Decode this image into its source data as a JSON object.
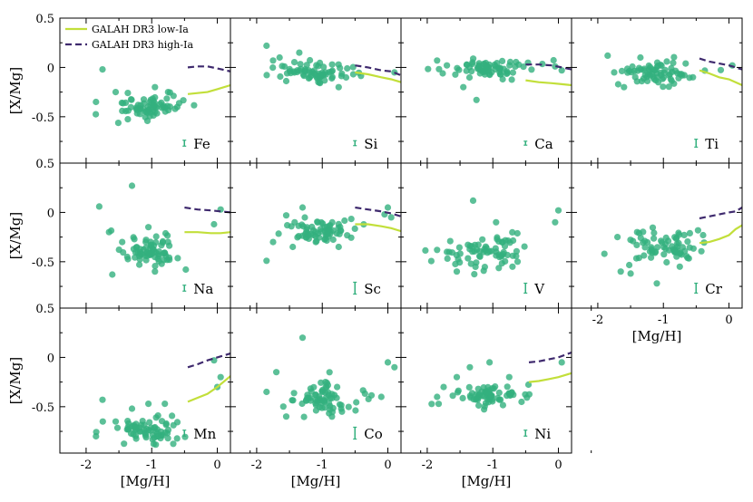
{
  "chart_data": {
    "type": "scatter",
    "layout": "3x4 grid of panels",
    "x_axis": {
      "label": "[Mg/H]",
      "range": [
        -2.4,
        0.2
      ],
      "ticks": [
        -2,
        -1,
        0
      ],
      "tick_labels": [
        "-2",
        "-1",
        "0"
      ]
    },
    "y_axis": {
      "label": "[X/Mg]",
      "range": [
        -0.97,
        0.5
      ],
      "ticks": [
        0.5,
        0,
        -0.5
      ],
      "tick_labels": [
        "0.5",
        "0",
        "-0.5"
      ]
    },
    "legend": {
      "position": "top-left of first panel",
      "entries": [
        {
          "name": "GALAH DR3 low-Ia",
          "style": "solid",
          "color": "#c2df3a"
        },
        {
          "name": "GALAH DR3 high-Ia",
          "style": "dashed",
          "color": "#3f2a6e"
        }
      ]
    },
    "colors": {
      "scatter": "#33b07e",
      "low_ia": "#c2df3a",
      "high_ia": "#3f2a6e"
    },
    "panels": [
      {
        "element": "Fe",
        "center": [
          -1.05,
          -0.4
        ],
        "spread": [
          0.25,
          0.06
        ],
        "err": 0.03,
        "outliers": [
          [
            -1.85,
            -0.35
          ],
          [
            -1.75,
            -0.02
          ],
          [
            -1.55,
            -0.25
          ],
          [
            -0.95,
            -0.2
          ],
          [
            -0.75,
            -0.25
          ]
        ],
        "low_ia": [
          [
            -0.45,
            -0.27
          ],
          [
            -0.3,
            -0.26
          ],
          [
            -0.15,
            -0.25
          ],
          [
            0.0,
            -0.22
          ],
          [
            0.2,
            -0.18
          ]
        ],
        "high_ia": [
          [
            -0.45,
            0.0
          ],
          [
            -0.3,
            0.01
          ],
          [
            -0.15,
            0.01
          ],
          [
            0.0,
            -0.01
          ],
          [
            0.2,
            -0.04
          ]
        ]
      },
      {
        "element": "Si",
        "center": [
          -1.1,
          -0.05
        ],
        "spread": [
          0.3,
          0.05
        ],
        "err": 0.025,
        "outliers": [
          [
            -1.85,
            0.22
          ],
          [
            -1.75,
            0.07
          ],
          [
            -1.65,
            0.1
          ],
          [
            -1.35,
            0.15
          ],
          [
            -0.75,
            -0.2
          ],
          [
            0.1,
            -0.05
          ]
        ],
        "low_ia": [
          [
            -0.5,
            -0.05
          ],
          [
            -0.3,
            -0.07
          ],
          [
            -0.1,
            -0.1
          ],
          [
            0.05,
            -0.12
          ],
          [
            0.2,
            -0.15
          ]
        ],
        "high_ia": [
          [
            -0.5,
            0.02
          ],
          [
            -0.3,
            0.0
          ],
          [
            -0.1,
            -0.03
          ],
          [
            0.05,
            -0.04
          ],
          [
            0.2,
            -0.08
          ]
        ]
      },
      {
        "element": "Ca",
        "center": [
          -1.05,
          -0.02
        ],
        "spread": [
          0.3,
          0.04
        ],
        "err": 0.02,
        "outliers": [
          [
            -1.85,
            0.07
          ],
          [
            -1.7,
            0.02
          ],
          [
            -1.45,
            -0.2
          ],
          [
            -1.25,
            -0.33
          ],
          [
            -0.85,
            -0.12
          ],
          [
            0.05,
            -0.03
          ],
          [
            -0.05,
            0.01
          ]
        ],
        "low_ia": [
          [
            -0.5,
            -0.13
          ],
          [
            -0.3,
            -0.15
          ],
          [
            -0.1,
            -0.16
          ],
          [
            0.05,
            -0.17
          ],
          [
            0.2,
            -0.18
          ]
        ],
        "high_ia": [
          [
            -0.5,
            0.03
          ],
          [
            -0.3,
            0.03
          ],
          [
            -0.1,
            0.02
          ],
          [
            0.05,
            0.0
          ],
          [
            0.2,
            -0.02
          ]
        ]
      },
      {
        "element": "Ti",
        "center": [
          -1.05,
          -0.05
        ],
        "spread": [
          0.28,
          0.06
        ],
        "err": 0.04,
        "outliers": [
          [
            -1.85,
            0.12
          ],
          [
            -1.75,
            -0.05
          ],
          [
            -1.6,
            -0.2
          ],
          [
            -1.35,
            0.1
          ],
          [
            -0.55,
            -0.1
          ],
          [
            0.05,
            0.02
          ]
        ],
        "low_ia": [
          [
            -0.45,
            -0.03
          ],
          [
            -0.3,
            -0.06
          ],
          [
            -0.15,
            -0.1
          ],
          [
            0.0,
            -0.12
          ],
          [
            0.2,
            -0.18
          ]
        ],
        "high_ia": [
          [
            -0.45,
            0.09
          ],
          [
            -0.3,
            0.06
          ],
          [
            -0.15,
            0.04
          ],
          [
            0.0,
            0.02
          ],
          [
            0.2,
            -0.02
          ]
        ]
      },
      {
        "element": "Na",
        "center": [
          -1.05,
          -0.4
        ],
        "spread": [
          0.22,
          0.07
        ],
        "err": 0.03,
        "outliers": [
          [
            -1.8,
            0.06
          ],
          [
            -1.65,
            -0.2
          ],
          [
            -1.45,
            -0.3
          ],
          [
            -1.3,
            0.27
          ],
          [
            -1.05,
            -0.15
          ],
          [
            -0.95,
            -0.6
          ],
          [
            -1.6,
            -0.63
          ],
          [
            -0.75,
            -0.3
          ],
          [
            0.05,
            0.03
          ],
          [
            -0.05,
            -0.12
          ]
        ],
        "low_ia": [
          [
            -0.5,
            -0.2
          ],
          [
            -0.3,
            -0.2
          ],
          [
            -0.1,
            -0.21
          ],
          [
            0.05,
            -0.21
          ],
          [
            0.2,
            -0.2
          ]
        ],
        "high_ia": [
          [
            -0.5,
            0.05
          ],
          [
            -0.3,
            0.03
          ],
          [
            -0.1,
            0.02
          ],
          [
            0.05,
            0.01
          ],
          [
            0.2,
            0.0
          ]
        ]
      },
      {
        "element": "Sc",
        "center": [
          -1.0,
          -0.18
        ],
        "spread": [
          0.25,
          0.06
        ],
        "err": 0.06,
        "outliers": [
          [
            -1.85,
            -0.49
          ],
          [
            -1.75,
            -0.3
          ],
          [
            -1.55,
            -0.03
          ],
          [
            -1.45,
            -0.35
          ],
          [
            -1.3,
            0.05
          ],
          [
            -0.75,
            -0.35
          ],
          [
            0.05,
            -0.05
          ],
          [
            -0.05,
            -0.02
          ],
          [
            0.0,
            0.05
          ]
        ],
        "low_ia": [
          [
            -0.5,
            -0.12
          ],
          [
            -0.3,
            -0.12
          ],
          [
            -0.1,
            -0.14
          ],
          [
            0.05,
            -0.16
          ],
          [
            0.2,
            -0.19
          ]
        ],
        "high_ia": [
          [
            -0.5,
            0.05
          ],
          [
            -0.3,
            0.03
          ],
          [
            -0.1,
            0.01
          ],
          [
            0.05,
            -0.01
          ],
          [
            0.2,
            -0.04
          ]
        ]
      },
      {
        "element": "V",
        "center": [
          -1.05,
          -0.4
        ],
        "spread": [
          0.3,
          0.1
        ],
        "err": 0.05,
        "outliers": [
          [
            -1.85,
            -0.38
          ],
          [
            -1.7,
            -0.4
          ],
          [
            -1.55,
            -0.6
          ],
          [
            -1.3,
            0.12
          ],
          [
            -0.95,
            -0.1
          ],
          [
            -0.7,
            -0.55
          ],
          [
            0.0,
            0.02
          ],
          [
            -0.05,
            -0.1
          ]
        ],
        "low_ia": [],
        "high_ia": []
      },
      {
        "element": "Cr",
        "center": [
          -1.0,
          -0.35
        ],
        "spread": [
          0.28,
          0.08
        ],
        "err": 0.05,
        "outliers": [
          [
            -1.9,
            -0.42
          ],
          [
            -1.65,
            -0.6
          ],
          [
            -1.7,
            -0.25
          ],
          [
            -1.5,
            -0.62
          ],
          [
            -1.4,
            -0.2
          ],
          [
            -0.75,
            -0.55
          ],
          [
            -1.1,
            -0.72
          ]
        ],
        "low_ia": [
          [
            -0.45,
            -0.31
          ],
          [
            -0.3,
            -0.3
          ],
          [
            -0.15,
            -0.27
          ],
          [
            0.0,
            -0.23
          ],
          [
            0.1,
            -0.17
          ],
          [
            0.2,
            -0.13
          ]
        ],
        "high_ia": [
          [
            -0.45,
            -0.06
          ],
          [
            -0.3,
            -0.04
          ],
          [
            -0.15,
            -0.02
          ],
          [
            0.0,
            0.0
          ],
          [
            0.1,
            0.01
          ],
          [
            0.2,
            0.05
          ]
        ]
      },
      {
        "element": "Mn",
        "center": [
          -1.05,
          -0.75
        ],
        "spread": [
          0.3,
          0.08
        ],
        "err": 0.03,
        "outliers": [
          [
            -1.85,
            -0.8
          ],
          [
            -1.75,
            -0.43
          ],
          [
            -1.55,
            -0.65
          ],
          [
            -1.3,
            -0.52
          ],
          [
            -1.05,
            -0.47
          ],
          [
            -0.8,
            -0.47
          ],
          [
            0.05,
            -0.2
          ],
          [
            0.0,
            -0.3
          ],
          [
            -0.05,
            -0.03
          ]
        ],
        "low_ia": [
          [
            -0.45,
            -0.45
          ],
          [
            -0.3,
            -0.41
          ],
          [
            -0.15,
            -0.37
          ],
          [
            0.0,
            -0.3
          ],
          [
            0.2,
            -0.19
          ]
        ],
        "high_ia": [
          [
            -0.45,
            -0.1
          ],
          [
            -0.3,
            -0.07
          ],
          [
            -0.15,
            -0.03
          ],
          [
            0.0,
            0.0
          ],
          [
            0.2,
            0.04
          ]
        ]
      },
      {
        "element": "Co",
        "center": [
          -1.0,
          -0.4
        ],
        "spread": [
          0.28,
          0.1
        ],
        "err": 0.06,
        "outliers": [
          [
            -1.85,
            -0.35
          ],
          [
            -1.7,
            -0.15
          ],
          [
            -1.55,
            -0.6
          ],
          [
            -1.3,
            0.2
          ],
          [
            -0.95,
            -0.25
          ],
          [
            -0.7,
            -0.55
          ],
          [
            0.0,
            -0.05
          ],
          [
            0.1,
            -0.1
          ],
          [
            -0.1,
            -0.4
          ]
        ],
        "low_ia": [],
        "high_ia": []
      },
      {
        "element": "Ni",
        "center": [
          -1.05,
          -0.38
        ],
        "spread": [
          0.28,
          0.05
        ],
        "err": 0.03,
        "outliers": [
          [
            -1.85,
            -0.4
          ],
          [
            -1.75,
            -0.3
          ],
          [
            -1.55,
            -0.2
          ],
          [
            -1.35,
            -0.1
          ],
          [
            -1.05,
            -0.05
          ],
          [
            -0.75,
            -0.2
          ],
          [
            0.05,
            -0.05
          ]
        ],
        "low_ia": [
          [
            -0.45,
            -0.25
          ],
          [
            -0.3,
            -0.24
          ],
          [
            -0.15,
            -0.22
          ],
          [
            0.0,
            -0.2
          ],
          [
            0.2,
            -0.16
          ]
        ],
        "high_ia": [
          [
            -0.45,
            -0.05
          ],
          [
            -0.3,
            -0.04
          ],
          [
            -0.15,
            -0.02
          ],
          [
            0.0,
            0.0
          ],
          [
            0.2,
            0.05
          ]
        ]
      }
    ]
  }
}
